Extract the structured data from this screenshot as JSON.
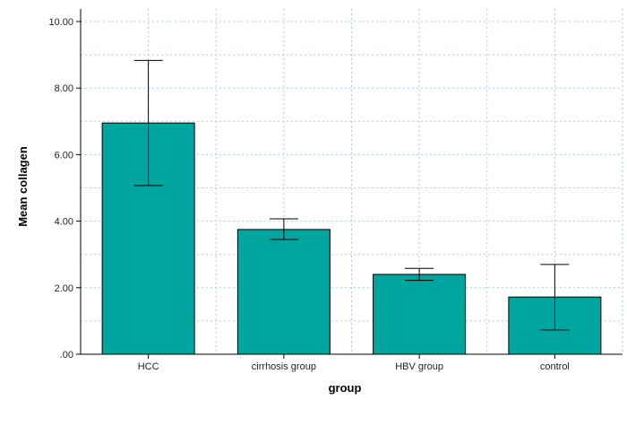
{
  "chart_data": {
    "type": "bar",
    "title": "",
    "xlabel": "group",
    "ylabel": "Mean collagen",
    "categories": [
      "HCC",
      "cirrhosis group",
      "HBV group",
      "control"
    ],
    "values": [
      6.95,
      3.75,
      2.4,
      1.72
    ],
    "error_bars": [
      {
        "low": 5.07,
        "high": 8.83
      },
      {
        "low": 3.45,
        "high": 4.07
      },
      {
        "low": 2.22,
        "high": 2.58
      },
      {
        "low": 0.73,
        "high": 2.7
      }
    ],
    "ylim": [
      0,
      10
    ],
    "yticks": [
      ".00",
      "2.00",
      "4.00",
      "6.00",
      "8.00",
      "10.00"
    ],
    "grid": true,
    "bar_color": "#00A5A0",
    "grid_color": "#A8CBE6"
  }
}
